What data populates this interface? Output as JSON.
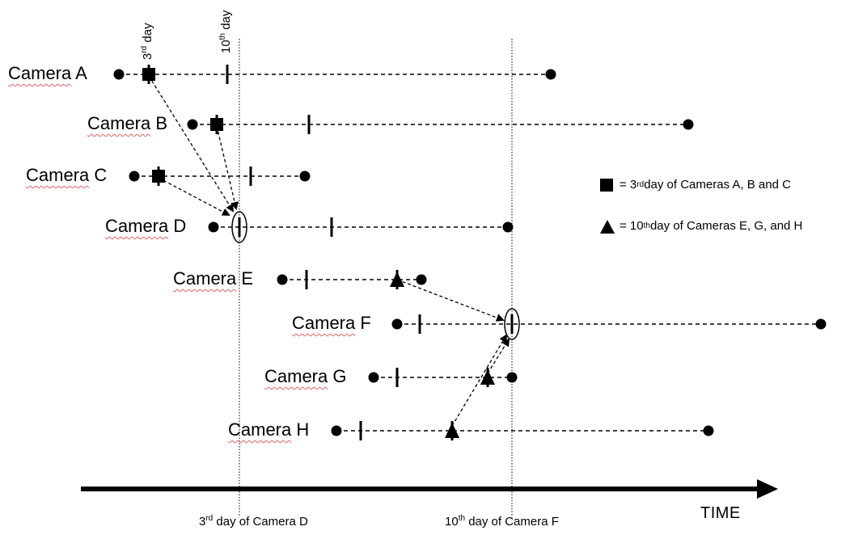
{
  "cameras": [
    {
      "label": "Camera A",
      "start": 147,
      "day3": 184,
      "day10": 281,
      "end": 681
    },
    {
      "label": "Camera B",
      "start": 238,
      "day3": 268,
      "day10": 382,
      "end": 851
    },
    {
      "label": "Camera C",
      "start": 166,
      "day3": 196,
      "day10": 310,
      "end": 377
    },
    {
      "label": "Camera D",
      "start": 264,
      "day3": 296,
      "day10": 410,
      "end": 628
    },
    {
      "label": "Camera E",
      "start": 349,
      "day3": 379,
      "day10": 491,
      "end": 521
    },
    {
      "label": "Camera F",
      "start": 491,
      "day3": 519,
      "day10": 633,
      "end": 1015
    },
    {
      "label": "Camera G",
      "start": 462,
      "day3": 491,
      "day10": 603,
      "end": 633
    },
    {
      "label": "Camera H",
      "start": 416,
      "day3": 446,
      "day10": 559,
      "end": 876
    }
  ],
  "top_markers": {
    "day3_text": "3",
    "day3_sup": "rd",
    "day3_suffix": " day",
    "day10_text": "10",
    "day10_sup": "th",
    "day10_suffix": " day"
  },
  "axis_notes": {
    "left_pre": "3",
    "left_sup": "rd",
    "left_post": " day of Camera D",
    "right_pre": "10",
    "right_sup": "th",
    "right_post": " day of Camera F"
  },
  "time_label": "TIME",
  "legend": {
    "square_pre": "= 3",
    "square_sup": "rd",
    "square_post": " day of Cameras A, B and C",
    "triangle_pre": "= 10",
    "triangle_sup": "th",
    "triangle_post": " day of Cameras E, G, and H"
  },
  "colors": {
    "ink": "#000000",
    "spell_underline": "#e06060"
  }
}
